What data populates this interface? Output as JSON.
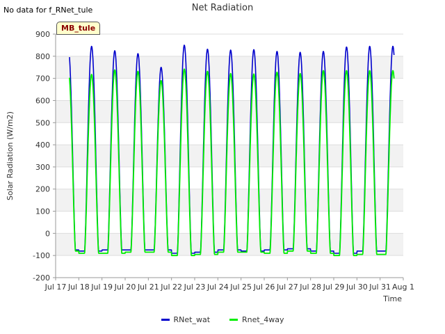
{
  "header": {
    "no_data_text": "No data for f_RNet_tule",
    "site_badge": "MB_tule"
  },
  "chart_data": {
    "type": "line",
    "title": "Net Radiation",
    "xlabel": "Time",
    "ylabel": "Solar Radiation (W/m2)",
    "ylim": [
      -200,
      900
    ],
    "yticks": [
      -200,
      -100,
      0,
      100,
      200,
      300,
      400,
      500,
      600,
      700,
      800,
      900
    ],
    "xlim_days": [
      0,
      15
    ],
    "x_tick_labels": [
      "Jul 17",
      "Jul 18",
      "Jul 19",
      "Jul 20",
      "Jul 21",
      "Jul 22",
      "Jul 23",
      "Jul 24",
      "Jul 25",
      "Jul 26",
      "Jul 27",
      "Jul 28",
      "Jul 29",
      "Jul 30",
      "Jul 31",
      "Aug 1"
    ],
    "x_unit": "days since Jul 17",
    "data_start_day": 0.6,
    "data_end_day": 14.6,
    "sunrise_hour": 6.0,
    "sunset_hour": 20.5,
    "series": [
      {
        "name": "RNet_wat",
        "color": "#0000cc",
        "daily_peak": [
          835,
          845,
          825,
          812,
          750,
          850,
          832,
          828,
          830,
          822,
          818,
          822,
          842,
          845
        ],
        "daily_night": [
          -75,
          -80,
          -75,
          -75,
          -75,
          -90,
          -85,
          -75,
          -80,
          -75,
          -70,
          -80,
          -90,
          -80
        ]
      },
      {
        "name": "Rnet_4way",
        "color": "#00ee00",
        "daily_peak": [
          738,
          718,
          738,
          732,
          690,
          742,
          732,
          722,
          720,
          728,
          722,
          735,
          735,
          735
        ],
        "daily_night": [
          -80,
          -90,
          -90,
          -85,
          -85,
          -100,
          -95,
          -85,
          -85,
          -90,
          -80,
          -90,
          -100,
          -95
        ]
      }
    ]
  }
}
